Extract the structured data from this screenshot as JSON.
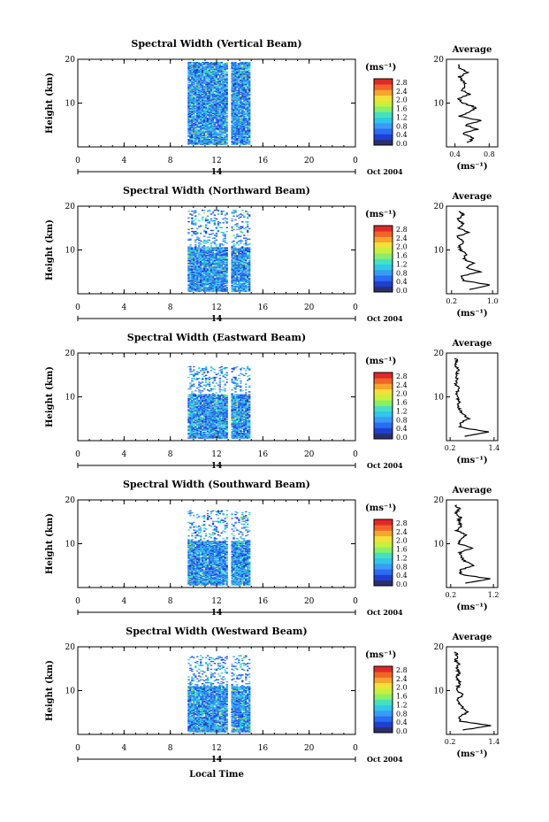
{
  "chart_data": [
    {
      "type": "heatmap",
      "title": "Spectral Width (Vertical Beam)",
      "ylabel": "Height (km)",
      "xlim": [
        0,
        24
      ],
      "ylim": [
        0,
        20
      ],
      "x_ticks": [
        "0",
        "4",
        "8",
        "12",
        "16",
        "20",
        "0"
      ],
      "y_ticks": [
        "20",
        "10"
      ],
      "day_label": "14",
      "month_label": "Oct 2004",
      "colorbar": {
        "unit": "(ms⁻¹)",
        "ticks": [
          "2.8",
          "2.4",
          "2.0",
          "1.6",
          "1.2",
          "0.8",
          "0.4",
          "0.0"
        ],
        "range": [
          0,
          2.8
        ]
      },
      "data_window": {
        "time": [
          9.5,
          14.9
        ],
        "height": [
          0.5,
          19.3
        ],
        "gap": [
          12.9,
          13.2
        ]
      },
      "profile": {
        "title": "Average",
        "xlabel": "(ms⁻¹)",
        "xlim": [
          0.3,
          0.9
        ],
        "x_ticks": [
          "0.4",
          "0.8"
        ],
        "y_ticks": [
          "20",
          "10"
        ],
        "height": [
          1,
          2,
          3,
          4,
          5,
          6,
          7,
          8,
          9,
          10,
          11,
          12,
          13,
          14,
          15,
          16,
          17,
          18,
          19
        ],
        "width": [
          0.55,
          0.62,
          0.48,
          0.66,
          0.52,
          0.71,
          0.45,
          0.58,
          0.64,
          0.5,
          0.43,
          0.57,
          0.47,
          0.53,
          0.49,
          0.45,
          0.55,
          0.46,
          0.43
        ]
      }
    },
    {
      "type": "heatmap",
      "title": "Spectral Width (Northward Beam)",
      "ylabel": "Height (km)",
      "xlim": [
        0,
        24
      ],
      "ylim": [
        0,
        20
      ],
      "x_ticks": [
        "0",
        "4",
        "8",
        "12",
        "16",
        "20",
        "0"
      ],
      "y_ticks": [
        "20",
        "10"
      ],
      "day_label": "14",
      "month_label": "Oct 2004",
      "colorbar": {
        "unit": "(ms⁻¹)",
        "ticks": [
          "2.8",
          "2.4",
          "2.0",
          "1.6",
          "1.2",
          "0.8",
          "0.4",
          "0.0"
        ],
        "range": [
          0,
          2.8
        ]
      },
      "data_window": {
        "time": [
          9.5,
          14.9
        ],
        "height": [
          0.5,
          10.5
        ],
        "gap": [
          12.9,
          13.2
        ],
        "sparse_top": 19
      },
      "profile": {
        "title": "Average",
        "xlabel": "(ms⁻¹)",
        "xlim": [
          0.1,
          1.1
        ],
        "x_ticks": [
          "0.2",
          "1.0"
        ],
        "y_ticks": [
          "20",
          "10"
        ],
        "height": [
          1,
          2,
          3,
          4,
          5,
          6,
          7,
          8,
          9,
          10,
          11,
          12,
          13,
          14,
          15,
          16,
          17,
          18,
          19
        ],
        "width": [
          0.55,
          0.95,
          0.45,
          0.4,
          0.75,
          0.5,
          0.62,
          0.42,
          0.48,
          0.38,
          0.35,
          0.45,
          0.3,
          0.52,
          0.35,
          0.42,
          0.32,
          0.45,
          0.3
        ]
      }
    },
    {
      "type": "heatmap",
      "title": "Spectral Width (Eastward Beam)",
      "ylabel": "Height (km)",
      "xlim": [
        0,
        24
      ],
      "ylim": [
        0,
        20
      ],
      "x_ticks": [
        "0",
        "4",
        "8",
        "12",
        "16",
        "20",
        "0"
      ],
      "y_ticks": [
        "20",
        "10"
      ],
      "day_label": "14",
      "month_label": "Oct 2004",
      "colorbar": {
        "unit": "(ms⁻¹)",
        "ticks": [
          "2.8",
          "2.4",
          "2.0",
          "1.6",
          "1.2",
          "0.8",
          "0.4",
          "0.0"
        ],
        "range": [
          0,
          2.8
        ]
      },
      "data_window": {
        "time": [
          9.5,
          14.9
        ],
        "height": [
          0.5,
          10.5
        ],
        "gap": [
          12.9,
          13.2
        ],
        "sparse_top": 17
      },
      "profile": {
        "title": "Average",
        "xlabel": "(ms⁻¹)",
        "xlim": [
          0.1,
          1.5
        ],
        "x_ticks": [
          "0.2",
          "1.4"
        ],
        "y_ticks": [
          "20",
          "10"
        ],
        "height": [
          1,
          2,
          3,
          4,
          5,
          6,
          7,
          8,
          9,
          10,
          11,
          12,
          13,
          14,
          15,
          16,
          17,
          18,
          19
        ],
        "width": [
          0.6,
          1.25,
          0.5,
          0.45,
          0.7,
          0.55,
          0.48,
          0.42,
          0.46,
          0.38,
          0.4,
          0.43,
          0.36,
          0.4,
          0.37,
          0.42,
          0.35,
          0.4,
          0.33
        ]
      }
    },
    {
      "type": "heatmap",
      "title": "Spectral Width (Southward Beam)",
      "ylabel": "Height (km)",
      "xlim": [
        0,
        24
      ],
      "ylim": [
        0,
        20
      ],
      "x_ticks": [
        "0",
        "4",
        "8",
        "12",
        "16",
        "20",
        "0"
      ],
      "y_ticks": [
        "20",
        "10"
      ],
      "day_label": "14",
      "month_label": "Oct 2004",
      "colorbar": {
        "unit": "(ms⁻¹)",
        "ticks": [
          "2.8",
          "2.4",
          "2.0",
          "1.6",
          "1.2",
          "0.8",
          "0.4",
          "0.0"
        ],
        "range": [
          0,
          2.8
        ]
      },
      "data_window": {
        "time": [
          9.5,
          14.9
        ],
        "height": [
          0.5,
          10.5
        ],
        "gap": [
          12.9,
          13.2
        ],
        "sparse_top": 17.5
      },
      "profile": {
        "title": "Average",
        "xlabel": "(ms⁻¹)",
        "xlim": [
          0.1,
          1.3
        ],
        "x_ticks": [
          "0.2",
          "1.2"
        ],
        "y_ticks": [
          "20",
          "10"
        ],
        "height": [
          1,
          2,
          3,
          4,
          5,
          6,
          7,
          8,
          9,
          10,
          11,
          12,
          13,
          14,
          15,
          16,
          17,
          18,
          19
        ],
        "width": [
          0.55,
          1.1,
          0.45,
          0.4,
          0.75,
          0.52,
          0.45,
          0.4,
          0.7,
          0.38,
          0.42,
          0.55,
          0.35,
          0.45,
          0.38,
          0.42,
          0.33,
          0.4,
          0.3
        ]
      }
    },
    {
      "type": "heatmap",
      "title": "Spectral Width (Westward Beam)",
      "ylabel": "Height (km)",
      "xlim": [
        0,
        24
      ],
      "ylim": [
        0,
        20
      ],
      "x_ticks": [
        "0",
        "4",
        "8",
        "12",
        "16",
        "20",
        "0"
      ],
      "y_ticks": [
        "20",
        "10"
      ],
      "day_label": "14",
      "month_label": "Oct 2004",
      "xlabel": "Local Time",
      "colorbar": {
        "unit": "(ms⁻¹)",
        "ticks": [
          "2.8",
          "2.4",
          "2.0",
          "1.6",
          "1.2",
          "0.8",
          "0.4",
          "0.0"
        ],
        "range": [
          0,
          2.8
        ]
      },
      "data_window": {
        "time": [
          9.5,
          14.9
        ],
        "height": [
          0.5,
          11.0
        ],
        "gap": [
          12.9,
          13.2
        ],
        "sparse_top": 18
      },
      "profile": {
        "title": "Average",
        "xlabel": "(ms⁻¹)",
        "xlim": [
          0.1,
          1.5
        ],
        "x_ticks": [
          "0.2",
          "1.4"
        ],
        "y_ticks": [
          "20",
          "10"
        ],
        "height": [
          1,
          2,
          3,
          4,
          5,
          6,
          7,
          8,
          9,
          10,
          11,
          12,
          13,
          14,
          15,
          16,
          17,
          18,
          19
        ],
        "width": [
          0.55,
          1.3,
          0.48,
          0.42,
          0.68,
          0.55,
          0.45,
          0.4,
          0.55,
          0.38,
          0.42,
          0.48,
          0.36,
          0.45,
          0.37,
          0.43,
          0.34,
          0.4,
          0.32
        ]
      }
    }
  ]
}
